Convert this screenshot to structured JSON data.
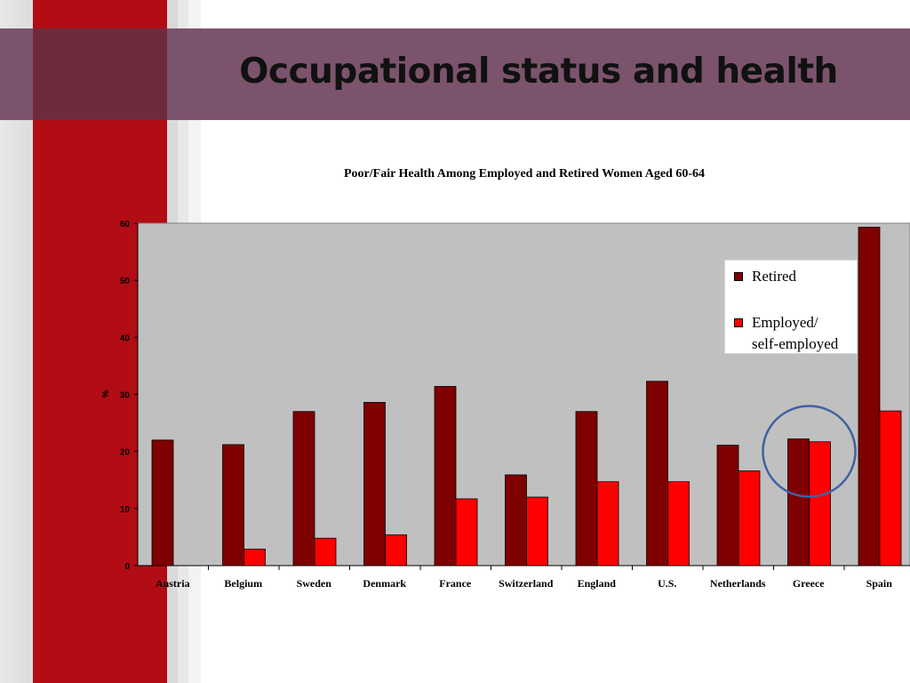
{
  "slide": {
    "title": "Occupational status and health"
  },
  "chart_data": {
    "type": "bar",
    "title": "Poor/Fair Health Among Employed and Retired Women Aged 60-64",
    "ylabel": "%",
    "xlabel": "",
    "ylim": [
      0,
      60
    ],
    "yticks": [
      0,
      10,
      20,
      30,
      40,
      50,
      60
    ],
    "grid": false,
    "legend_position": "top-right",
    "categories": [
      "Austria",
      "Belgium",
      "Sweden",
      "Denmark",
      "France",
      "Switzerland",
      "England",
      "U.S.",
      "Netherlands",
      "Greece",
      "Spain"
    ],
    "series": [
      {
        "name": "Retired",
        "color": "#7e0000",
        "values": [
          22,
          21.2,
          27,
          28.6,
          31.4,
          15.9,
          27,
          32.3,
          21.1,
          22.2,
          59.3
        ]
      },
      {
        "name": "Employed/ self-employed",
        "label_lines": [
          "Employed/",
          "self-employed"
        ],
        "color": "#ff0000",
        "values": [
          null,
          2.9,
          4.8,
          5.4,
          11.7,
          12,
          14.7,
          14.7,
          16.6,
          21.7,
          27.1
        ]
      }
    ],
    "annotation": {
      "type": "circle",
      "category": "Greece",
      "color": "#3f62a0"
    },
    "plot_background": "#c0c0c0"
  }
}
